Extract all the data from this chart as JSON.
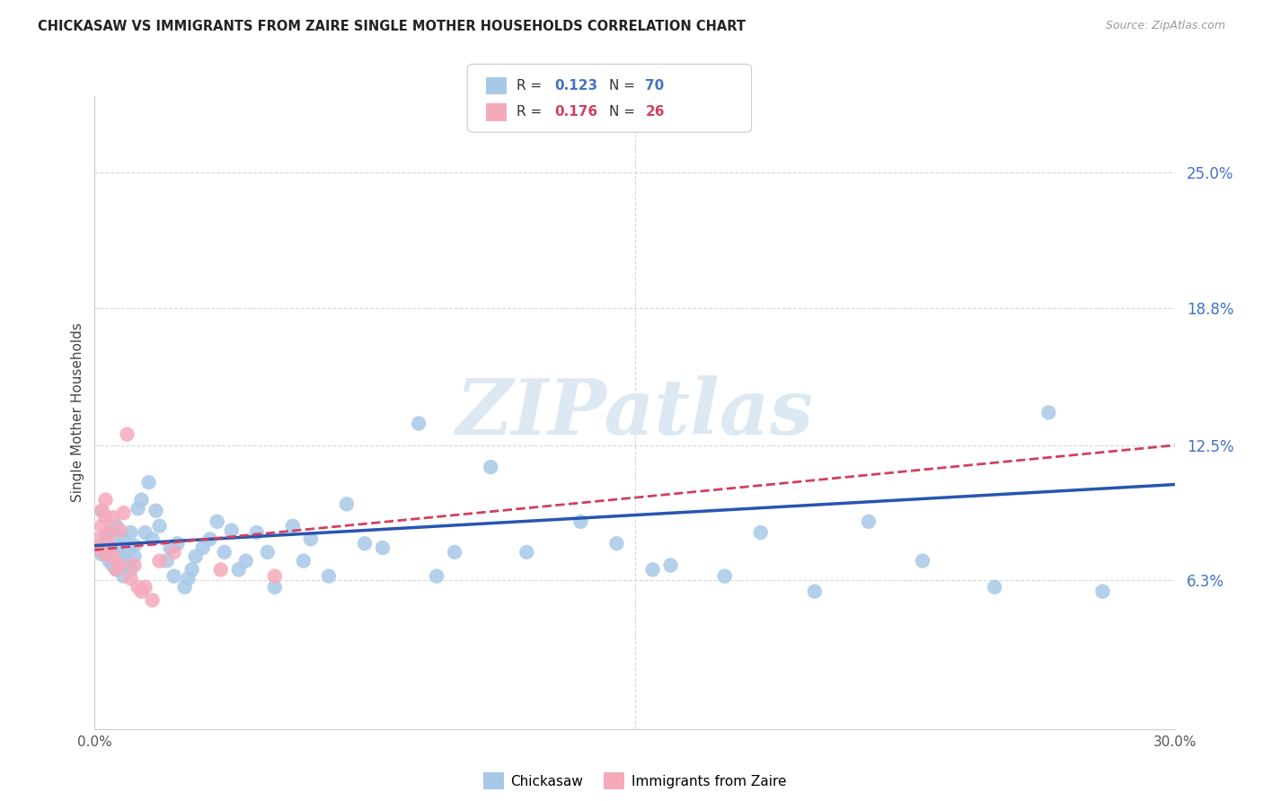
{
  "title": "CHICKASAW VS IMMIGRANTS FROM ZAIRE SINGLE MOTHER HOUSEHOLDS CORRELATION CHART",
  "source": "Source: ZipAtlas.com",
  "ylabel": "Single Mother Households",
  "xlim": [
    0.0,
    0.3
  ],
  "ylim": [
    -0.005,
    0.285
  ],
  "xtick_positions": [
    0.0,
    0.05,
    0.1,
    0.15,
    0.2,
    0.25,
    0.3
  ],
  "xticklabels": [
    "0.0%",
    "",
    "",
    "",
    "",
    "",
    "30.0%"
  ],
  "right_ytick_positions": [
    0.063,
    0.125,
    0.188,
    0.25
  ],
  "right_yticklabels": [
    "6.3%",
    "12.5%",
    "18.8%",
    "25.0%"
  ],
  "blue_scatter_color": "#a8c8e8",
  "pink_scatter_color": "#f5aabb",
  "blue_line_color": "#2855b0",
  "pink_line_color": "#d04060",
  "grid_color": "#d8d8d8",
  "watermark_text": "ZIPatlas",
  "watermark_color": "#dce8f2",
  "bg_color": "#ffffff",
  "title_color": "#222222",
  "source_color": "#999999",
  "right_tick_color": "#4472c4",
  "bottom_legend_labels": [
    "Chickasaw",
    "Immigrants from Zaire"
  ],
  "legend_R1": "0.123",
  "legend_N1": "70",
  "legend_R2": "0.176",
  "legend_N2": "26",
  "legend_R_color": "#4472c4",
  "legend_R2_color": "#d04060",
  "blue_line_start_y": 0.079,
  "blue_line_end_y": 0.107,
  "pink_line_start_y": 0.077,
  "pink_line_end_y": 0.125,
  "chickasaw_x": [
    0.001,
    0.002,
    0.002,
    0.003,
    0.003,
    0.004,
    0.004,
    0.005,
    0.005,
    0.006,
    0.006,
    0.007,
    0.007,
    0.008,
    0.008,
    0.009,
    0.009,
    0.01,
    0.01,
    0.011,
    0.011,
    0.012,
    0.013,
    0.014,
    0.015,
    0.016,
    0.017,
    0.018,
    0.02,
    0.021,
    0.022,
    0.023,
    0.025,
    0.026,
    0.027,
    0.028,
    0.03,
    0.032,
    0.034,
    0.036,
    0.038,
    0.04,
    0.042,
    0.045,
    0.048,
    0.05,
    0.055,
    0.058,
    0.06,
    0.065,
    0.07,
    0.075,
    0.08,
    0.09,
    0.095,
    0.1,
    0.11,
    0.12,
    0.135,
    0.145,
    0.155,
    0.16,
    0.175,
    0.185,
    0.2,
    0.215,
    0.23,
    0.25,
    0.265,
    0.28
  ],
  "chickasaw_y": [
    0.077,
    0.095,
    0.075,
    0.08,
    0.083,
    0.072,
    0.078,
    0.07,
    0.085,
    0.068,
    0.088,
    0.074,
    0.079,
    0.065,
    0.082,
    0.07,
    0.076,
    0.068,
    0.085,
    0.074,
    0.079,
    0.096,
    0.1,
    0.085,
    0.108,
    0.082,
    0.095,
    0.088,
    0.072,
    0.078,
    0.065,
    0.08,
    0.06,
    0.064,
    0.068,
    0.074,
    0.078,
    0.082,
    0.09,
    0.076,
    0.086,
    0.068,
    0.072,
    0.085,
    0.076,
    0.06,
    0.088,
    0.072,
    0.082,
    0.065,
    0.098,
    0.08,
    0.078,
    0.135,
    0.065,
    0.076,
    0.115,
    0.076,
    0.09,
    0.08,
    0.068,
    0.07,
    0.065,
    0.085,
    0.058,
    0.09,
    0.072,
    0.06,
    0.14,
    0.058
  ],
  "zaire_x": [
    0.001,
    0.001,
    0.002,
    0.002,
    0.003,
    0.003,
    0.003,
    0.004,
    0.004,
    0.005,
    0.005,
    0.006,
    0.007,
    0.007,
    0.008,
    0.009,
    0.01,
    0.011,
    0.012,
    0.013,
    0.014,
    0.016,
    0.018,
    0.022,
    0.035,
    0.05
  ],
  "zaire_y": [
    0.082,
    0.078,
    0.088,
    0.095,
    0.075,
    0.092,
    0.1,
    0.085,
    0.08,
    0.092,
    0.074,
    0.068,
    0.086,
    0.07,
    0.094,
    0.13,
    0.064,
    0.07,
    0.06,
    0.058,
    0.06,
    0.054,
    0.072,
    0.076,
    0.068,
    0.065
  ]
}
